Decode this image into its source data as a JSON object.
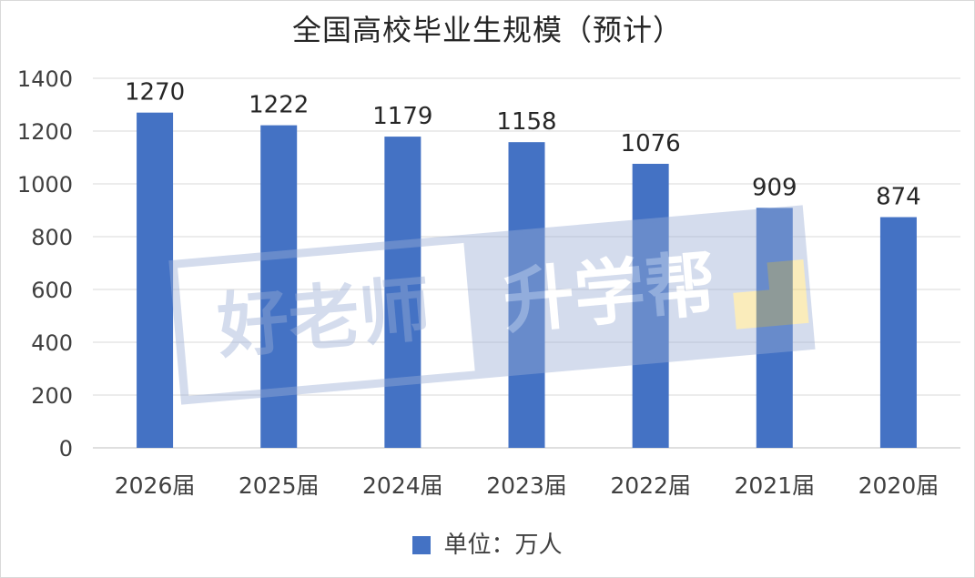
{
  "chart_data": {
    "type": "bar",
    "title": "全国高校毕业生规模（预计）",
    "categories": [
      "2026届",
      "2025届",
      "2024届",
      "2023届",
      "2022届",
      "2021届",
      "2020届"
    ],
    "series": [
      {
        "name": "单位：万人",
        "values": [
          1270,
          1222,
          1179,
          1158,
          1076,
          909,
          874
        ]
      }
    ],
    "y_ticks": [
      0,
      200,
      400,
      600,
      800,
      1000,
      1200,
      1400
    ],
    "ylim": [
      0,
      1400
    ],
    "grid": true,
    "legend_position": "bottom",
    "bar_color": "#4472c4"
  },
  "watermark": {
    "text_left": "好老师",
    "text_right": "升学帮",
    "registered_mark": "®"
  }
}
